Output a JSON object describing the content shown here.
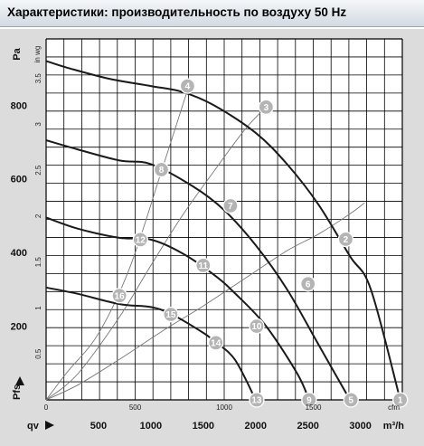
{
  "header": {
    "title": "Характеристики: производительность по воздуху 50 Hz"
  },
  "colors": {
    "header_bg": "#d3dae2",
    "frame_bg": "#dcdcdc",
    "plot_bg": "#ffffff",
    "grid": "#000000",
    "curve": "#1a1a1a",
    "thin_curve": "#777777",
    "marker_fill": "#b4b4b4"
  },
  "chart_data": {
    "type": "line",
    "title": "",
    "grid": true,
    "x_axis": {
      "label": "qv",
      "unit": "m³/h",
      "range": [
        0,
        3400
      ],
      "ticks": [
        "500",
        "1000",
        "1500",
        "2000",
        "2500",
        "3000"
      ],
      "tick_values": [
        500,
        1000,
        1500,
        2000,
        2500,
        3000
      ]
    },
    "x_axis_secondary": {
      "unit": "cfm",
      "range": [
        0,
        2000
      ],
      "ticks": [
        "0",
        "500",
        "1000",
        "1500"
      ],
      "tick_values": [
        0,
        500,
        1000,
        1500
      ]
    },
    "y_axis": {
      "label": "Pfs",
      "unit": "Pa",
      "range": [
        0,
        980
      ],
      "ticks": [
        "200",
        "400",
        "600",
        "800"
      ],
      "tick_values": [
        200,
        400,
        600,
        800
      ]
    },
    "y_axis_secondary": {
      "unit": "in wg",
      "range": [
        0,
        3.93
      ],
      "ticks": [
        "0.5",
        "1",
        "1.5",
        "2",
        "2.5",
        "3",
        "3.5"
      ],
      "tick_values": [
        0.5,
        1,
        1.5,
        2,
        2.5,
        3,
        3.5
      ]
    },
    "series": [
      {
        "x": [
          0,
          200,
          600,
          1000,
          1300,
          1600,
          2000,
          2300,
          2600,
          2900,
          3100,
          3380
        ],
        "y": [
          920,
          902,
          872,
          852,
          836,
          800,
          725,
          640,
          530,
          390,
          300,
          0
        ]
      },
      {
        "x": [
          0,
          300,
          700,
          1000,
          1400,
          1700,
          2000,
          2300,
          2600,
          2900
        ],
        "y": [
          705,
          680,
          650,
          640,
          580,
          515,
          420,
          300,
          150,
          0
        ]
      },
      {
        "x": [
          0,
          300,
          700,
          1000,
          1300,
          1600,
          1800,
          2100,
          2400,
          2510
        ],
        "y": [
          495,
          465,
          440,
          435,
          398,
          340,
          290,
          200,
          70,
          0
        ]
      },
      {
        "x": [
          0,
          300,
          700,
          1000,
          1200,
          1500,
          1600,
          1800,
          2000
        ],
        "y": [
          305,
          288,
          260,
          252,
          232,
          182,
          160,
          110,
          0
        ]
      },
      {
        "x": [
          0,
          200,
          500,
          800,
          1100,
          1360
        ],
        "y": [
          0,
          75,
          180,
          360,
          620,
          850
        ]
      },
      {
        "x": [
          0,
          300,
          700,
          1000,
          1300,
          1600,
          1900,
          2110
        ],
        "y": [
          0,
          70,
          225,
          365,
          500,
          620,
          735,
          798
        ]
      },
      {
        "x": [
          0,
          300,
          700,
          1100,
          1500,
          1900,
          2300,
          2600,
          2900,
          3040
        ],
        "y": [
          0,
          40,
          110,
          185,
          255,
          330,
          405,
          450,
          505,
          535
        ]
      }
    ],
    "markers": [
      {
        "label": "1",
        "x": 3380,
        "y": 0
      },
      {
        "label": "2",
        "x": 2860,
        "y": 436
      },
      {
        "label": "3",
        "x": 2100,
        "y": 795
      },
      {
        "label": "4",
        "x": 1350,
        "y": 852
      },
      {
        "label": "5",
        "x": 2910,
        "y": 0
      },
      {
        "label": "6",
        "x": 2500,
        "y": 315
      },
      {
        "label": "7",
        "x": 1760,
        "y": 527
      },
      {
        "label": "8",
        "x": 1100,
        "y": 625
      },
      {
        "label": "9",
        "x": 2510,
        "y": 0
      },
      {
        "label": "10",
        "x": 2010,
        "y": 200
      },
      {
        "label": "11",
        "x": 1500,
        "y": 365
      },
      {
        "label": "12",
        "x": 900,
        "y": 435
      },
      {
        "label": "13",
        "x": 2010,
        "y": 0
      },
      {
        "label": "14",
        "x": 1620,
        "y": 155
      },
      {
        "label": "15",
        "x": 1190,
        "y": 232
      },
      {
        "label": "16",
        "x": 700,
        "y": 283
      }
    ]
  }
}
